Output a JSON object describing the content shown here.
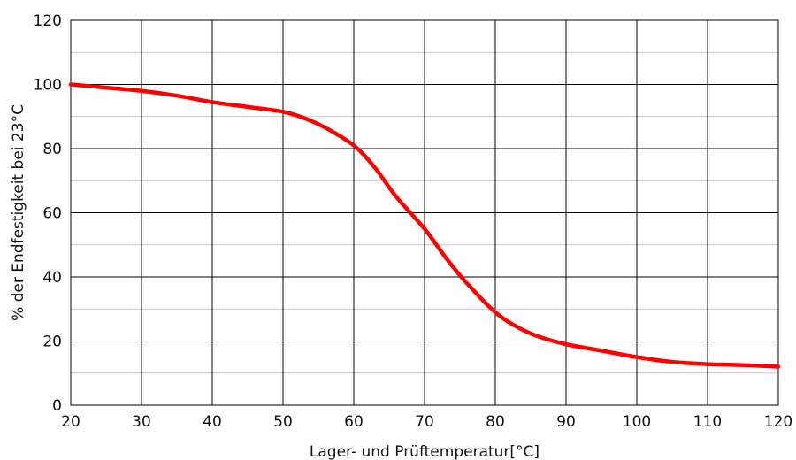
{
  "chart_data": {
    "type": "line",
    "title": "",
    "xlabel": "Lager- und Prüftemperatur[°C]",
    "ylabel": "% der Endfestigkeit bei 23°C",
    "xlim": [
      20,
      120
    ],
    "ylim": [
      0,
      120
    ],
    "xticks": [
      20,
      30,
      40,
      50,
      60,
      70,
      80,
      90,
      100,
      110,
      120
    ],
    "yticks": [
      0,
      20,
      40,
      60,
      80,
      100,
      120
    ],
    "y_minor_step": 10,
    "grid": true,
    "series": [
      {
        "color": "#ff0000",
        "x": [
          20,
          25,
          30,
          35,
          40,
          45,
          50,
          53,
          56,
          60,
          63,
          66,
          70,
          73,
          76,
          80,
          83,
          86,
          90,
          95,
          100,
          105,
          110,
          115,
          120
        ],
        "y": [
          100,
          99,
          98,
          96.5,
          94.5,
          93,
          91.5,
          89.5,
          86.5,
          81,
          74,
          65,
          55,
          46,
          38,
          29,
          24.5,
          21.5,
          19,
          17,
          15,
          13.5,
          12.8,
          12.5,
          12
        ]
      }
    ]
  }
}
